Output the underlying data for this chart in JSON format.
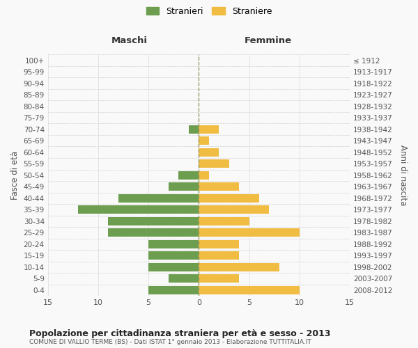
{
  "age_groups": [
    "100+",
    "95-99",
    "90-94",
    "85-89",
    "80-84",
    "75-79",
    "70-74",
    "65-69",
    "60-64",
    "55-59",
    "50-54",
    "45-49",
    "40-44",
    "35-39",
    "30-34",
    "25-29",
    "20-24",
    "15-19",
    "10-14",
    "5-9",
    "0-4"
  ],
  "birth_years": [
    "≤ 1912",
    "1913-1917",
    "1918-1922",
    "1923-1927",
    "1928-1932",
    "1933-1937",
    "1938-1942",
    "1943-1947",
    "1948-1952",
    "1953-1957",
    "1958-1962",
    "1963-1967",
    "1968-1972",
    "1973-1977",
    "1978-1982",
    "1983-1987",
    "1988-1992",
    "1993-1997",
    "1998-2002",
    "2003-2007",
    "2008-2012"
  ],
  "maschi": [
    0,
    0,
    0,
    0,
    0,
    0,
    1,
    0,
    0,
    0,
    2,
    3,
    8,
    12,
    9,
    9,
    5,
    5,
    5,
    3,
    5
  ],
  "femmine": [
    0,
    0,
    0,
    0,
    0,
    0,
    2,
    1,
    2,
    3,
    1,
    4,
    6,
    7,
    5,
    10,
    4,
    4,
    8,
    4,
    10
  ],
  "maschi_color": "#6d9e4f",
  "femmine_color": "#f0bc42",
  "title": "Popolazione per cittadinanza straniera per età e sesso - 2013",
  "subtitle": "COMUNE DI VALLIO TERME (BS) - Dati ISTAT 1° gennaio 2013 - Elaborazione TUTTITALIA.IT",
  "xlabel_left": "Maschi",
  "xlabel_right": "Femmine",
  "ylabel_left": "Fasce di età",
  "ylabel_right": "Anni di nascita",
  "legend_male": "Stranieri",
  "legend_female": "Straniere",
  "xlim": 15,
  "bg_color": "#f9f9f9",
  "grid_color": "#d0d0d0",
  "dashed_line_color": "#999966"
}
